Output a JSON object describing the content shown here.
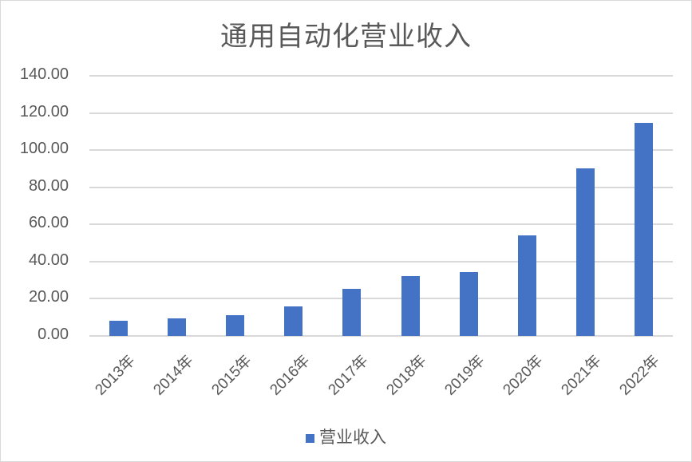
{
  "chart_data": {
    "type": "bar",
    "title": "通用自动化营业收入",
    "xlabel": "",
    "ylabel": "",
    "categories": [
      "2013年",
      "2014年",
      "2015年",
      "2016年",
      "2017年",
      "2018年",
      "2019年",
      "2020年",
      "2021年",
      "2022年"
    ],
    "series": [
      {
        "name": "营业收入",
        "color": "#4472c4",
        "values": [
          8.2,
          9.5,
          11.2,
          16.0,
          25.4,
          32.3,
          34.5,
          54.2,
          90.0,
          114.5
        ]
      }
    ],
    "ylim": [
      0,
      140
    ],
    "yticks": [
      "0.00",
      "20.00",
      "40.00",
      "60.00",
      "80.00",
      "100.00",
      "120.00",
      "140.00"
    ],
    "grid": true,
    "legend_position": "bottom"
  },
  "legend": {
    "label": "营业收入"
  }
}
